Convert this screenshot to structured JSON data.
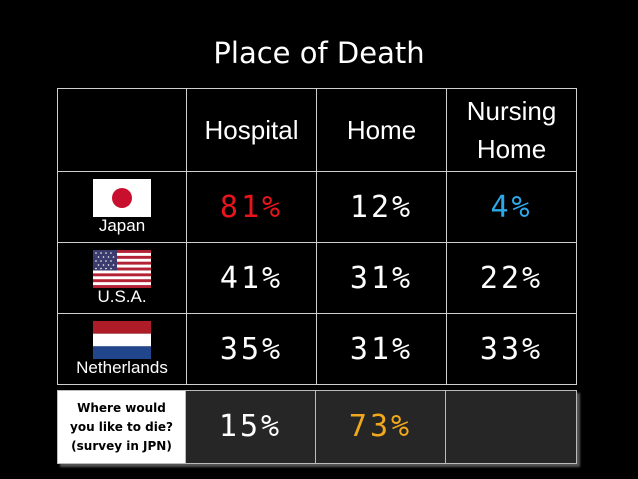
{
  "title": "Place of Death",
  "columns": [
    "Hospital",
    "Home",
    "Nursing\nHome"
  ],
  "colors": {
    "red": "#e8141c",
    "blue": "#2ea7e8",
    "orange": "#f0a81c",
    "white": "#ffffff"
  },
  "rows": [
    {
      "country": "Japan",
      "flag": "japan-flag-icon",
      "values": [
        "81%",
        "12%",
        "4%"
      ]
    },
    {
      "country": "U.S.A.",
      "flag": "usa-flag-icon",
      "values": [
        "41%",
        "31%",
        "22%"
      ]
    },
    {
      "country": "Netherlands",
      "flag": "netherlands-flag-icon",
      "values": [
        "35%",
        "31%",
        "33%"
      ]
    }
  ],
  "survey": {
    "question_lines": [
      "Where would",
      "you like to die?",
      "(survey in JPN)"
    ],
    "values": [
      "15%",
      "73%",
      ""
    ]
  }
}
